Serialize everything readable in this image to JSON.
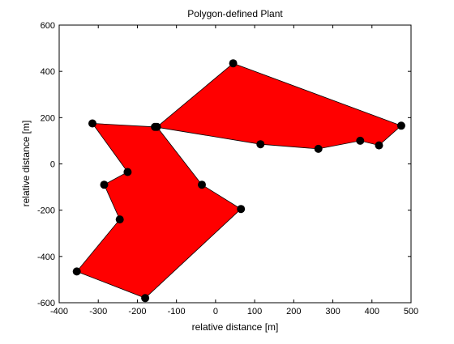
{
  "chart_data": {
    "type": "scatter",
    "title": "Polygon-defined Plant",
    "xlabel": "relative distance [m]",
    "ylabel": "relative distance [m]",
    "xlim": [
      -400,
      500
    ],
    "ylim": [
      -600,
      600
    ],
    "xticks": [
      -400,
      -300,
      -200,
      -100,
      0,
      100,
      200,
      300,
      400,
      500
    ],
    "yticks": [
      -600,
      -400,
      -200,
      0,
      200,
      400,
      600
    ],
    "grid": false,
    "legend": "none",
    "fill_color": "#ff0000",
    "marker_color": "#000000",
    "edge_color": "#000000",
    "series": [
      {
        "x": [
          45,
          475,
          418,
          370,
          263,
          115,
          -155,
          -315,
          -225,
          -285,
          -245,
          -355,
          -180,
          65,
          -35,
          -150
        ],
        "y": [
          435,
          165,
          80,
          100,
          65,
          85,
          160,
          175,
          -35,
          -90,
          -240,
          -465,
          -580,
          -195,
          -90,
          160
        ]
      }
    ]
  }
}
